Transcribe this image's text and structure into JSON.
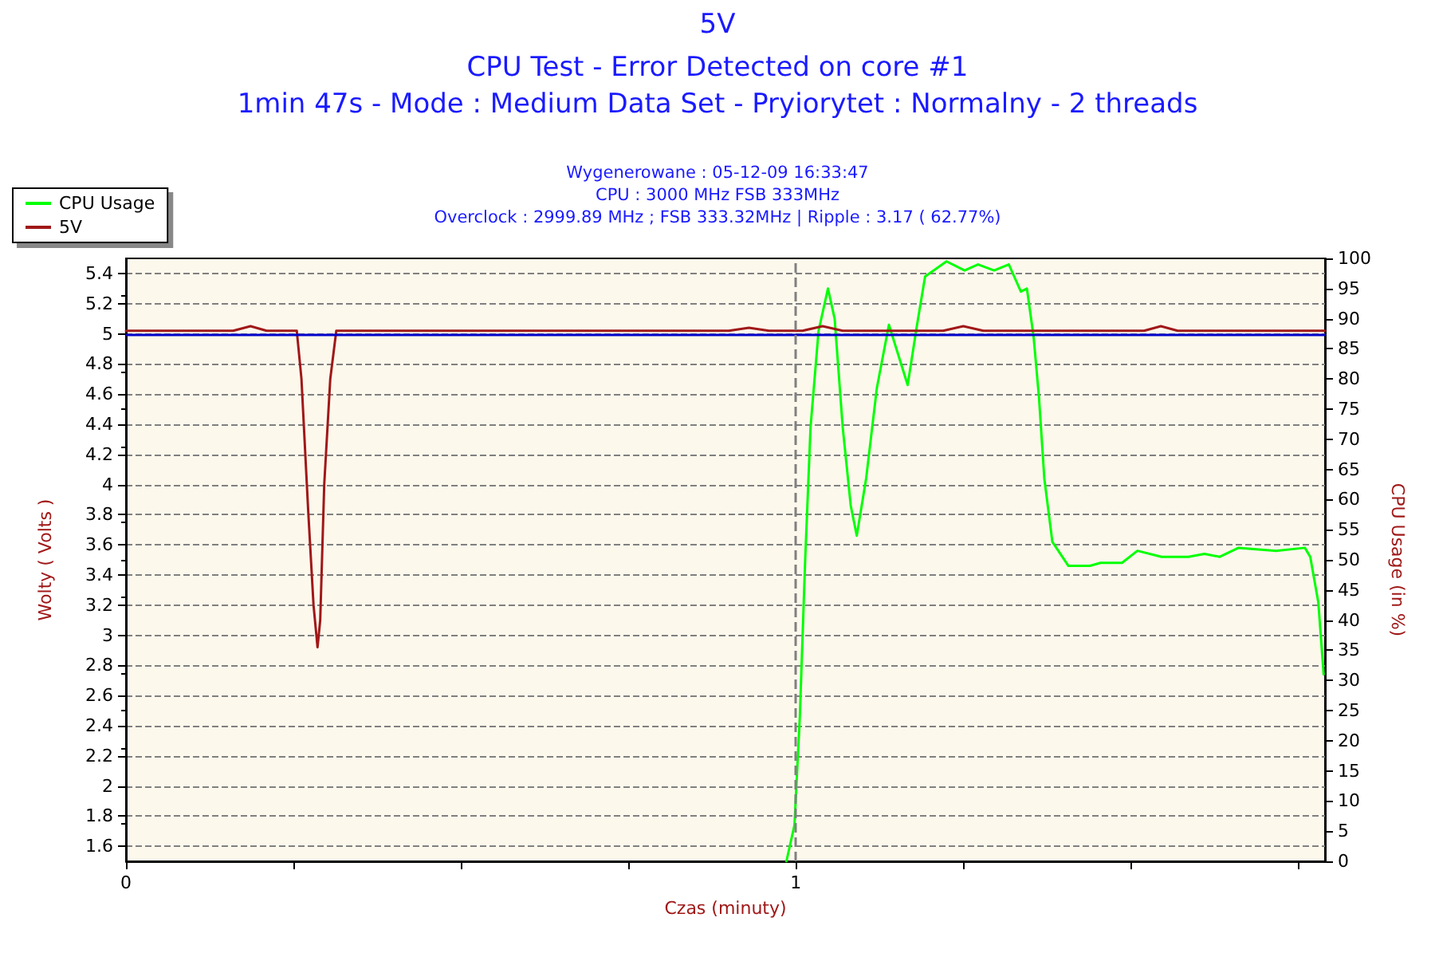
{
  "chart_data": {
    "type": "line",
    "title": "5V",
    "subtitle": "CPU Test - Error Detected on core #1\n1min 47s - Mode : Medium Data Set - Pryiorytet : Normalny - 2 threads",
    "annotations": [
      "Wygenerowane : 05-12-09 16:33:47",
      "CPU : 3000 MHz FSB 333MHz",
      "Overclock : 2999.89 MHz ; FSB 333.32MHz | Ripple : 3.17 ( 62.77%)"
    ],
    "xlabel": "Czas (minuty)",
    "ylabel": "Wolty ( Volts )",
    "y2label": "CPU Usage (in %)",
    "xlim": [
      0,
      1.79
    ],
    "xticks": [
      0,
      {
        "value": 0.25,
        "label": null
      },
      {
        "value": 0.5,
        "label": null
      },
      {
        "value": 0.75,
        "label": null
      },
      1,
      {
        "value": 1.25,
        "label": null
      },
      {
        "value": 1.5,
        "label": null
      },
      {
        "value": 1.75,
        "label": null
      }
    ],
    "ylim": [
      1.5,
      5.5
    ],
    "yticks": [
      1.6,
      1.8,
      2,
      2.2,
      2.4,
      2.6,
      2.8,
      3,
      3.2,
      3.4,
      3.6,
      3.8,
      4,
      4.2,
      4.4,
      4.6,
      4.8,
      5,
      5.2,
      5.4
    ],
    "y2lim": [
      0,
      100
    ],
    "y2ticks": [
      0,
      5,
      10,
      15,
      20,
      25,
      30,
      35,
      40,
      45,
      50,
      55,
      60,
      65,
      70,
      75,
      80,
      85,
      90,
      95,
      100
    ],
    "grid": "y",
    "legend": "top left",
    "marker": "none",
    "line_style": "solid",
    "ref_lines": [
      {
        "axis": "y",
        "value": 5,
        "color": "#0000cc",
        "line_style": "solid"
      },
      {
        "axis": "x",
        "value": 1,
        "color": "#808080",
        "line_style": "dashed"
      }
    ],
    "series": [
      {
        "name": "CPU Usage",
        "color": "#00ff00",
        "axis": "y2",
        "x": [
          0.986,
          0.998,
          1.006,
          1.014,
          1.022,
          1.034,
          1.048,
          1.058,
          1.07,
          1.082,
          1.091,
          1.105,
          1.121,
          1.139,
          1.153,
          1.167,
          1.181,
          1.193,
          1.225,
          1.252,
          1.272,
          1.296,
          1.318,
          1.336,
          1.345,
          1.355,
          1.363,
          1.371,
          1.383,
          1.407,
          1.439,
          1.455,
          1.487,
          1.51,
          1.546,
          1.586,
          1.61,
          1.633,
          1.661,
          1.717,
          1.76,
          1.768,
          1.78,
          1.788
        ],
        "values": [
          0,
          6,
          24,
          50,
          72,
          88,
          95,
          90,
          72,
          59,
          54,
          63.5,
          78.5,
          89,
          84,
          79,
          89,
          97,
          99.5,
          98,
          99,
          98,
          99,
          94.5,
          95,
          87,
          77,
          63.5,
          53,
          49,
          49,
          49.5,
          49.5,
          51.5,
          50.5,
          50.5,
          51,
          50.5,
          52,
          51.5,
          52,
          50.5,
          43,
          31
        ]
      },
      {
        "name": "5V",
        "color": "#a01818",
        "axis": "y",
        "x": [
          0,
          0.16,
          0.186,
          0.21,
          0.255,
          0.262,
          0.272,
          0.28,
          0.286,
          0.29,
          0.296,
          0.305,
          0.314,
          0.9,
          0.93,
          0.96,
          1.01,
          1.04,
          1.07,
          1.22,
          1.25,
          1.28,
          1.52,
          1.545,
          1.57,
          1.79
        ],
        "values": [
          5.02,
          5.02,
          5.05,
          5.02,
          5.02,
          4.7,
          3.83,
          3.2,
          2.92,
          3.1,
          4.0,
          4.7,
          5.02,
          5.02,
          5.04,
          5.02,
          5.02,
          5.05,
          5.02,
          5.02,
          5.05,
          5.02,
          5.02,
          5.05,
          5.02,
          5.02
        ]
      }
    ]
  }
}
